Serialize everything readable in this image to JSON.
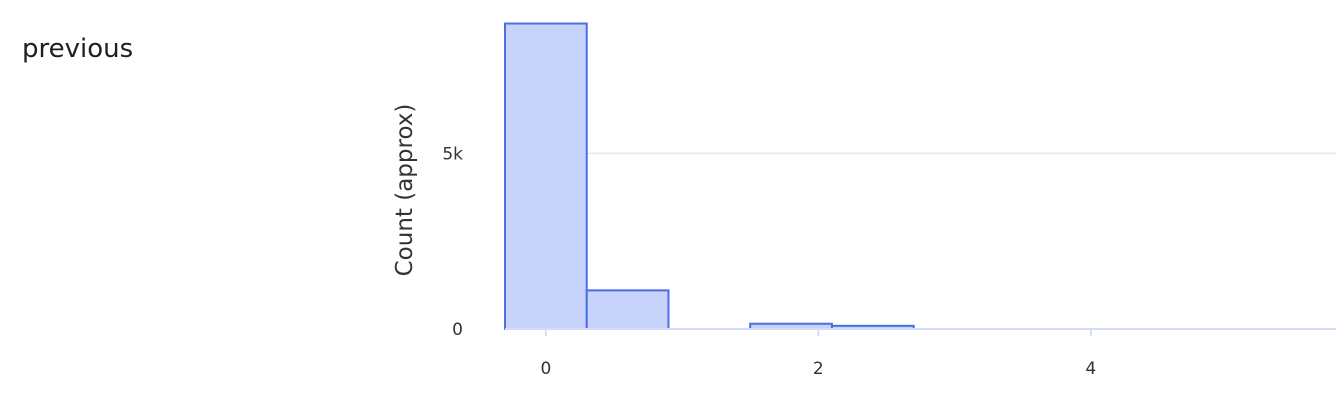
{
  "field": {
    "label": "previous"
  },
  "chart_data": {
    "type": "bar",
    "ylabel": "Count (approx)",
    "xlabel": "",
    "x_ticks": [
      0,
      2,
      4
    ],
    "y_ticks": [
      {
        "value": 0,
        "label": "0"
      },
      {
        "value": 5000,
        "label": "5k"
      }
    ],
    "xlim": [
      -0.3,
      5.8
    ],
    "ylim": [
      0,
      8800
    ],
    "grid": true,
    "colors": {
      "bar_fill": "#c7d3fb",
      "bar_stroke": "#4a6ee6",
      "grid": "#e4e7ef",
      "axis": "#d3dcfa"
    },
    "bins": [
      {
        "x0": -0.3,
        "x1": 0.3,
        "value": 8700
      },
      {
        "x0": 0.3,
        "x1": 0.9,
        "value": 1100
      },
      {
        "x0": 1.5,
        "x1": 2.1,
        "value": 150
      },
      {
        "x0": 2.1,
        "x1": 2.7,
        "value": 90
      }
    ]
  }
}
